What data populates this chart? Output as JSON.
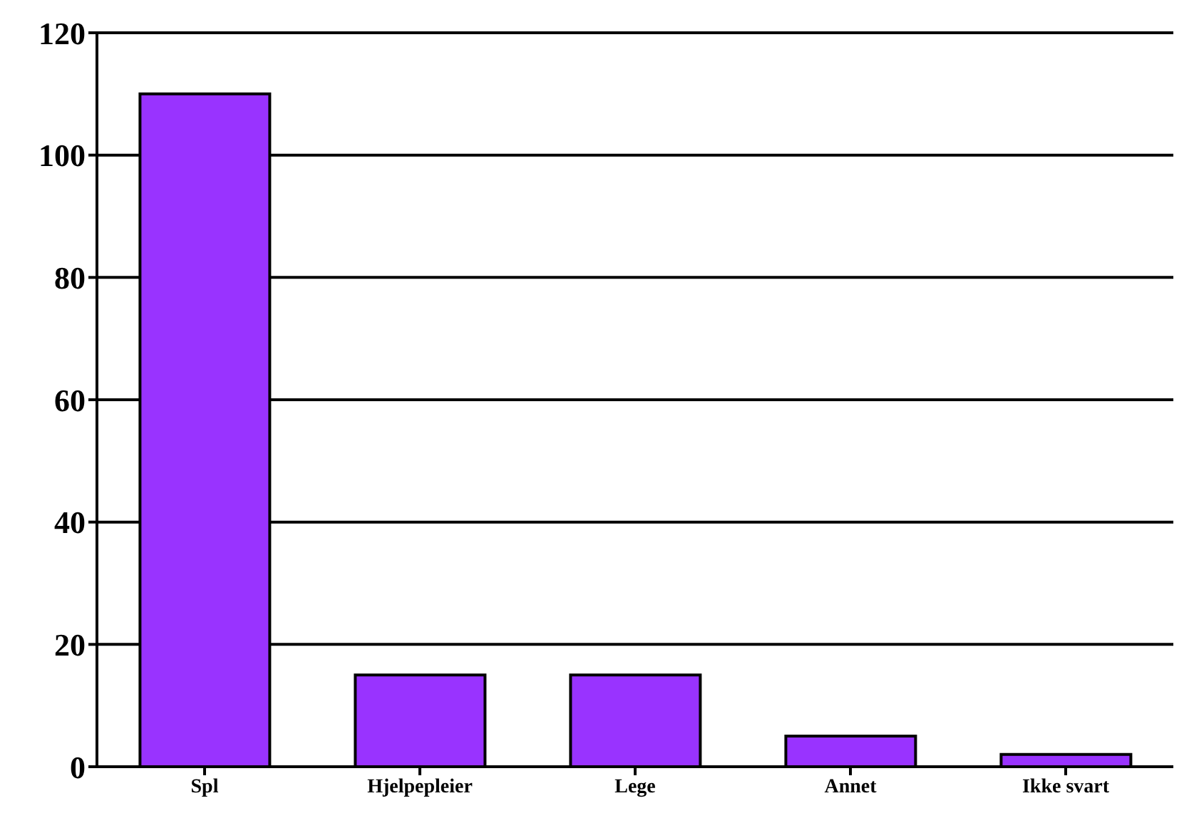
{
  "chart_data": {
    "type": "bar",
    "categories": [
      "Spl",
      "Hjelpepleier",
      "Lege",
      "Annet",
      "Ikke svart"
    ],
    "values": [
      110,
      15,
      15,
      5,
      2
    ],
    "color": "#9933ff",
    "ylim": [
      0,
      120
    ],
    "yticks": [
      0,
      20,
      40,
      60,
      80,
      100,
      120
    ],
    "grid": "y"
  }
}
